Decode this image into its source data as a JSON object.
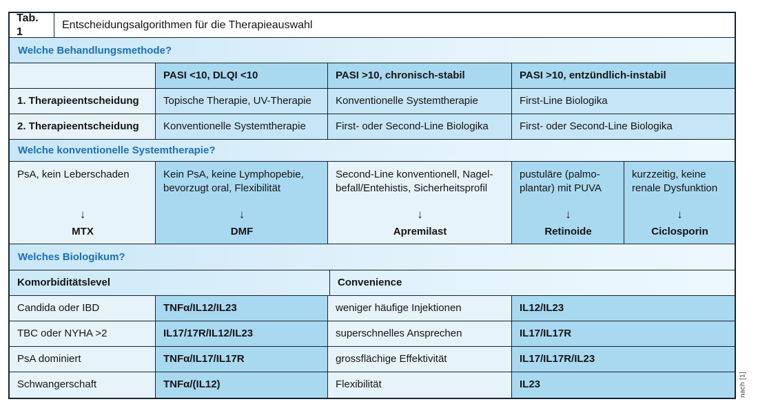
{
  "title": {
    "tag": "Tab. 1",
    "text": "Entscheidungsalgorithmen für die Therapieauswahl"
  },
  "colors": {
    "heading_blue": "#1c6fb6",
    "cell_light": "#e7f3fb",
    "cell_medium": "#c6e6f7",
    "cell_dark": "#a9d9f1",
    "border": "#15232e"
  },
  "arrow_icon": "↓",
  "behandlung": {
    "heading": "Welche Behandlungsmethode?",
    "col_headers": [
      "PASI <10, DLQI <10",
      "PASI >10, chronisch-stabil",
      "PASI >10, entzündlich-instabil"
    ],
    "rows": [
      {
        "label": "1. Therapieentscheidung",
        "c1": "Topische Therapie, UV-Therapie",
        "c2": "Konventionelle Systemtherapie",
        "c3": "First-Line Biologika"
      },
      {
        "label": "2. Therapieentscheidung",
        "c1": "Konventionelle Systemtherapie",
        "c2": "First- oder Second-Line Biologika",
        "c3": "First- oder Second-Line Biologika"
      }
    ]
  },
  "systemtherapie": {
    "heading": "Welche konventionelle Systemtherapie?",
    "options": [
      {
        "criteria": "PsA, kein Leberschaden",
        "therapy": "MTX"
      },
      {
        "criteria": "Kein PsA, keine Lymphopebie, bevorzugt oral, Flexibilität",
        "therapy": "DMF"
      },
      {
        "criteria": "Second-Line konventionell, Nagel-befall/Entehistis, Sicherheitsprofil",
        "therapy": "Apremilast"
      },
      {
        "criteria": "pustuläre (palmo-plantar) mit PUVA",
        "therapy": "Retinoide"
      },
      {
        "criteria": "kurzzeitig, keine renale Dysfunktion",
        "therapy": "Ciclosporin"
      }
    ]
  },
  "biologikum": {
    "heading": "Welches Biologikum?",
    "col_headers": [
      "Komorbiditätslevel",
      "Convenience"
    ],
    "rows": [
      {
        "label": "Candida oder IBD",
        "value": "TNFα/IL12/IL23",
        "convenience": "weniger häufige Injektionen",
        "cvalue": "IL12/IL23"
      },
      {
        "label": "TBC oder NYHA >2",
        "value": "IL17/17R/IL12/IL23",
        "convenience": "superschnelles Ansprechen",
        "cvalue": "IL17/IL17R"
      },
      {
        "label": "PsA dominiert",
        "value": "TNFα/IL17/IL17R",
        "convenience": "grossflächige Effektivität",
        "cvalue": "IL17/IL17R/IL23"
      },
      {
        "label": "Schwangerschaft",
        "value": "TNFα/(IL12)",
        "convenience": "Flexibilität",
        "cvalue": "IL23"
      }
    ]
  },
  "source": "nach [1]"
}
